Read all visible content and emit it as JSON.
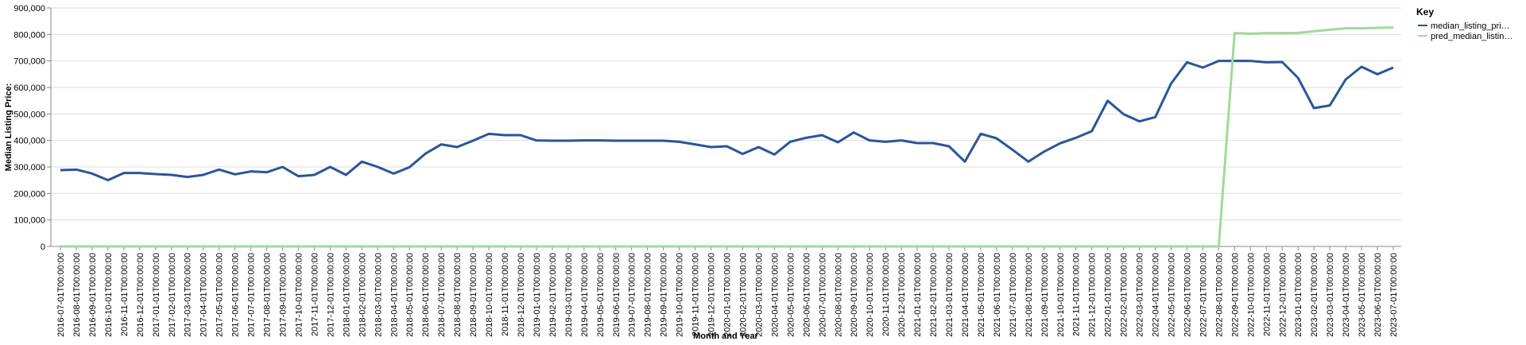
{
  "chart_data": {
    "type": "line",
    "x_label": "Month and Year",
    "y_label": "Median Listing Price:",
    "legend_title": "Key",
    "legend_position": "right",
    "grid": true,
    "categories": [
      "2016-07-01T00:00:00",
      "2016-08-01T00:00:00",
      "2016-09-01T00:00:00",
      "2016-10-01T00:00:00",
      "2016-11-01T00:00:00",
      "2016-12-01T00:00:00",
      "2017-01-01T00:00:00",
      "2017-02-01T00:00:00",
      "2017-03-01T00:00:00",
      "2017-04-01T00:00:00",
      "2017-05-01T00:00:00",
      "2017-06-01T00:00:00",
      "2017-07-01T00:00:00",
      "2017-08-01T00:00:00",
      "2017-09-01T00:00:00",
      "2017-10-01T00:00:00",
      "2017-11-01T00:00:00",
      "2017-12-01T00:00:00",
      "2018-01-01T00:00:00",
      "2018-02-01T00:00:00",
      "2018-03-01T00:00:00",
      "2018-04-01T00:00:00",
      "2018-05-01T00:00:00",
      "2018-06-01T00:00:00",
      "2018-07-01T00:00:00",
      "2018-08-01T00:00:00",
      "2018-09-01T00:00:00",
      "2018-10-01T00:00:00",
      "2018-11-01T00:00:00",
      "2018-12-01T00:00:00",
      "2019-01-01T00:00:00",
      "2019-02-01T00:00:00",
      "2019-03-01T00:00:00",
      "2019-04-01T00:00:00",
      "2019-05-01T00:00:00",
      "2019-06-01T00:00:00",
      "2019-07-01T00:00:00",
      "2019-08-01T00:00:00",
      "2019-09-01T00:00:00",
      "2019-10-01T00:00:00",
      "2019-11-01T00:00:00",
      "2019-12-01T00:00:00",
      "2020-01-01T00:00:00",
      "2020-02-01T00:00:00",
      "2020-03-01T00:00:00",
      "2020-04-01T00:00:00",
      "2020-05-01T00:00:00",
      "2020-06-01T00:00:00",
      "2020-07-01T00:00:00",
      "2020-08-01T00:00:00",
      "2020-09-01T00:00:00",
      "2020-10-01T00:00:00",
      "2020-11-01T00:00:00",
      "2020-12-01T00:00:00",
      "2021-01-01T00:00:00",
      "2021-02-01T00:00:00",
      "2021-03-01T00:00:00",
      "2021-04-01T00:00:00",
      "2021-05-01T00:00:00",
      "2021-06-01T00:00:00",
      "2021-07-01T00:00:00",
      "2021-08-01T00:00:00",
      "2021-09-01T00:00:00",
      "2021-10-01T00:00:00",
      "2021-11-01T00:00:00",
      "2021-12-01T00:00:00",
      "2022-01-01T00:00:00",
      "2022-02-01T00:00:00",
      "2022-03-01T00:00:00",
      "2022-04-01T00:00:00",
      "2022-05-01T00:00:00",
      "2022-06-01T00:00:00",
      "2022-07-01T00:00:00",
      "2022-08-01T00:00:00",
      "2022-09-01T00:00:00",
      "2022-10-01T00:00:00",
      "2022-11-01T00:00:00",
      "2022-12-01T00:00:00",
      "2023-01-01T00:00:00",
      "2023-02-01T00:00:00",
      "2023-03-01T00:00:00",
      "2023-04-01T00:00:00",
      "2023-05-01T00:00:00",
      "2023-06-01T00:00:00",
      "2023-07-01T00:00:00"
    ],
    "series": [
      {
        "name": "median_listing_pri…",
        "color": "#2a5599",
        "values": [
          288000,
          290000,
          275000,
          250000,
          277000,
          277000,
          273000,
          270000,
          262000,
          270000,
          290000,
          272000,
          283000,
          280000,
          300000,
          265000,
          270000,
          300000,
          270000,
          320000,
          300000,
          275000,
          299000,
          350000,
          385000,
          375000,
          399000,
          425000,
          420000,
          420000,
          400000,
          399000,
          399000,
          400000,
          400000,
          399000,
          399000,
          399000,
          399000,
          395000,
          385000,
          375000,
          378000,
          349000,
          375000,
          347000,
          395000,
          410000,
          420000,
          393000,
          430000,
          400000,
          395000,
          400000,
          390000,
          390000,
          378000,
          320000,
          425000,
          408000,
          365000,
          320000,
          358000,
          389000,
          410000,
          435000,
          550000,
          499000,
          472000,
          488000,
          615000,
          695000,
          675000,
          700000,
          700000,
          700000,
          695000,
          696000,
          636000,
          522000,
          532000,
          630000,
          678000,
          650000,
          675000
        ]
      },
      {
        "name": "pred_median_listin…",
        "color": "#a1d99b",
        "values": [
          0,
          0,
          0,
          0,
          0,
          0,
          0,
          0,
          0,
          0,
          0,
          0,
          0,
          0,
          0,
          0,
          0,
          0,
          0,
          0,
          0,
          0,
          0,
          0,
          0,
          0,
          0,
          0,
          0,
          0,
          0,
          0,
          0,
          0,
          0,
          0,
          0,
          0,
          0,
          0,
          0,
          0,
          0,
          0,
          0,
          0,
          0,
          0,
          0,
          0,
          0,
          0,
          0,
          0,
          0,
          0,
          0,
          0,
          0,
          0,
          0,
          0,
          0,
          0,
          0,
          0,
          0,
          0,
          0,
          0,
          0,
          0,
          0,
          0,
          805000,
          803000,
          805000,
          805000,
          806000,
          812000,
          818000,
          823000,
          823000,
          825000,
          826000
        ]
      }
    ],
    "ylim": [
      0,
      900000
    ],
    "yticks": [
      0,
      {
        "value": 100000,
        "label": "100,000"
      },
      {
        "value": 200000,
        "label": "200,000"
      },
      {
        "value": 300000,
        "label": "300,000"
      },
      {
        "value": 400000,
        "label": "400,000"
      },
      {
        "value": 500000,
        "label": "500,000"
      },
      {
        "value": 600000,
        "label": "600,000"
      },
      {
        "value": 700000,
        "label": "700,000"
      },
      {
        "value": 800000,
        "label": "800,000"
      },
      {
        "value": 900000,
        "label": "900,000"
      }
    ]
  }
}
